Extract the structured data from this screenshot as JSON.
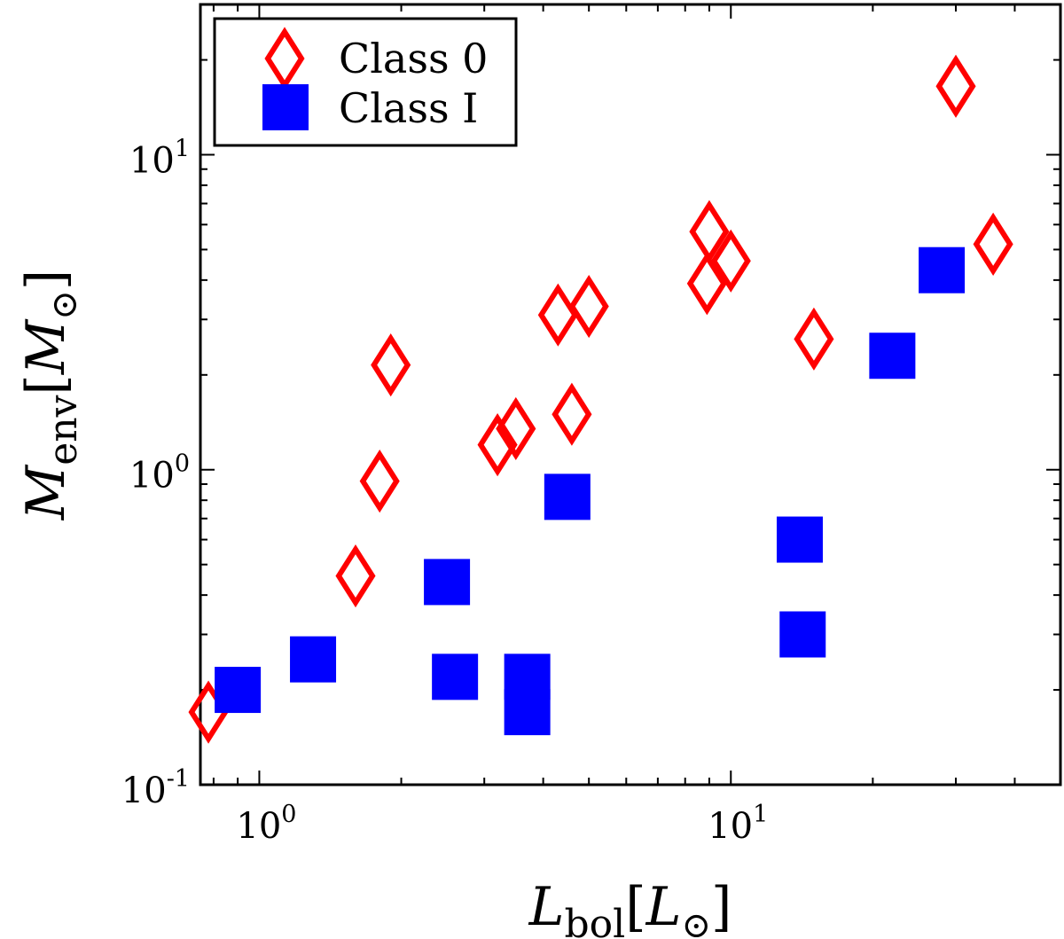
{
  "chart_data": {
    "type": "scatter",
    "xscale": "log",
    "yscale": "log",
    "xlim": [
      0.75,
      50
    ],
    "ylim": [
      0.1,
      30
    ],
    "xticks": [
      {
        "base": "10",
        "exp": "0",
        "value": 1
      },
      {
        "base": "10",
        "exp": "1",
        "value": 10
      }
    ],
    "yticks": [
      {
        "base": "10",
        "exp": "-1",
        "value": 0.1
      },
      {
        "base": "10",
        "exp": "0",
        "value": 1
      },
      {
        "base": "10",
        "exp": "1",
        "value": 10
      }
    ],
    "xlabel": {
      "main": "L",
      "sub": "bol",
      "unit_main": "L",
      "unit_sub": "⊙"
    },
    "ylabel": {
      "main": "M",
      "sub": "env",
      "unit_main": "M",
      "unit_sub": "⊙"
    },
    "grid": false,
    "legend_position": "top-left",
    "series": [
      {
        "name": "Class 0",
        "marker": "open-diamond",
        "color": "#ff0000",
        "points": [
          {
            "x": 0.78,
            "y": 0.17
          },
          {
            "x": 1.6,
            "y": 0.46
          },
          {
            "x": 1.8,
            "y": 0.92
          },
          {
            "x": 1.9,
            "y": 2.15
          },
          {
            "x": 3.2,
            "y": 1.2
          },
          {
            "x": 3.5,
            "y": 1.35
          },
          {
            "x": 4.3,
            "y": 3.1
          },
          {
            "x": 4.6,
            "y": 1.5
          },
          {
            "x": 5.0,
            "y": 3.3
          },
          {
            "x": 9.0,
            "y": 5.7
          },
          {
            "x": 8.9,
            "y": 3.9
          },
          {
            "x": 10.0,
            "y": 4.6
          },
          {
            "x": 15.0,
            "y": 2.6
          },
          {
            "x": 30.0,
            "y": 16.5
          },
          {
            "x": 36.0,
            "y": 5.2
          }
        ]
      },
      {
        "name": "Class I",
        "marker": "filled-square",
        "color": "#0000ff",
        "points": [
          {
            "x": 0.9,
            "y": 0.2
          },
          {
            "x": 1.3,
            "y": 0.25
          },
          {
            "x": 2.5,
            "y": 0.44
          },
          {
            "x": 2.6,
            "y": 0.22
          },
          {
            "x": 3.7,
            "y": 0.22
          },
          {
            "x": 3.7,
            "y": 0.17
          },
          {
            "x": 4.5,
            "y": 0.82
          },
          {
            "x": 14.0,
            "y": 0.6
          },
          {
            "x": 14.2,
            "y": 0.3
          },
          {
            "x": 22.0,
            "y": 2.3
          },
          {
            "x": 28.0,
            "y": 4.3
          }
        ]
      }
    ]
  }
}
